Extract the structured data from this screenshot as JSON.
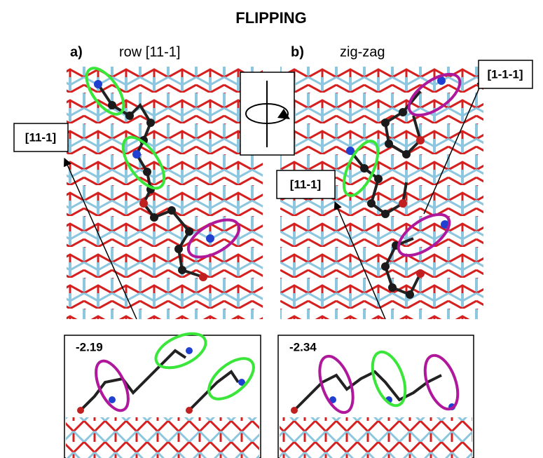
{
  "figure": {
    "title": "FLIPPING",
    "panels": [
      {
        "letter": "a)",
        "caption": "row [11-1]",
        "energy": "-2.19",
        "directions": [
          "[11-1]"
        ]
      },
      {
        "letter": "b)",
        "caption": "zig-zag",
        "energy": "-2.34",
        "directions": [
          "[11-1]",
          "[1-1-1]"
        ]
      }
    ]
  }
}
